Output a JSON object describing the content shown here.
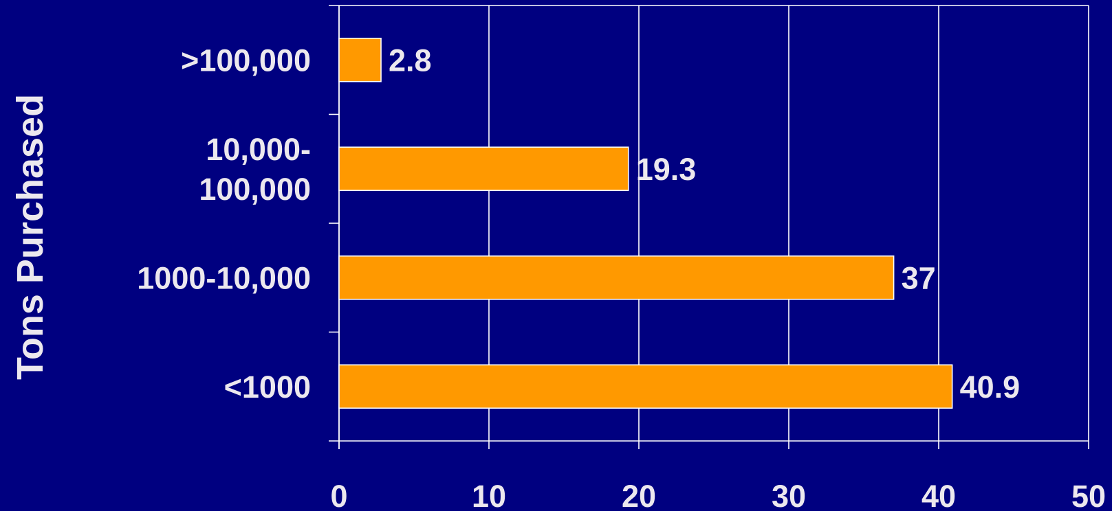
{
  "chart_data": {
    "type": "bar",
    "orientation": "horizontal",
    "ylabel": "Tons Purchased",
    "xlabel": "",
    "categories": [
      [
        ">100,000"
      ],
      [
        "10,000-",
        "100,000"
      ],
      [
        "1000-10,000"
      ],
      [
        "<1000"
      ]
    ],
    "values": [
      2.8,
      19.3,
      37,
      40.9
    ],
    "data_labels": [
      "2.8",
      "19.3",
      "37",
      "40.9"
    ],
    "xlim": [
      0,
      50
    ],
    "xticks": [
      "0",
      "10",
      "20",
      "30",
      "40",
      "50"
    ],
    "grid": "vertical",
    "legend": "none"
  },
  "colors": {
    "background": "#000080",
    "bar": "#ff9900",
    "text": "#ece8ee",
    "grid": "#ffffff"
  }
}
